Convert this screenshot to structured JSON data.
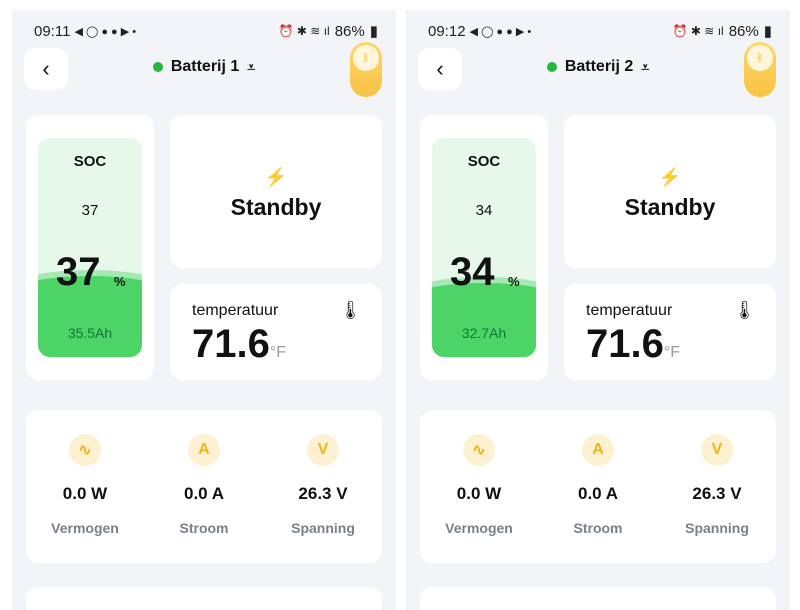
{
  "panels": [
    {
      "status": {
        "time": "09:11",
        "battery": "86%"
      },
      "title": "Batterij 1",
      "soc": {
        "label": "SOC",
        "small": "37",
        "big": "37",
        "unit": "%",
        "ah": "35.5Ah",
        "fraction": 0.37
      },
      "state": "Standby",
      "temperature": {
        "label": "temperatuur",
        "value": "71.6",
        "unit": "°F"
      },
      "stats": [
        {
          "value": "0.0 W",
          "label": "Vermogen",
          "icon": "pulse-icon",
          "glyph": "~"
        },
        {
          "value": "0.0 A",
          "label": "Stroom",
          "icon": "ampere-icon",
          "glyph": "A"
        },
        {
          "value": "26.3 V",
          "label": "Spanning",
          "icon": "volt-icon",
          "glyph": "V"
        }
      ]
    },
    {
      "status": {
        "time": "09:12",
        "battery": "86%"
      },
      "title": "Batterij 2",
      "soc": {
        "label": "SOC",
        "small": "34",
        "big": "34",
        "unit": "%",
        "ah": "32.7Ah",
        "fraction": 0.34
      },
      "state": "Standby",
      "temperature": {
        "label": "temperatuur",
        "value": "71.6",
        "unit": "°F"
      },
      "stats": [
        {
          "value": "0.0 W",
          "label": "Vermogen",
          "icon": "pulse-icon",
          "glyph": "~"
        },
        {
          "value": "0.0 A",
          "label": "Stroom",
          "icon": "ampere-icon",
          "glyph": "A"
        },
        {
          "value": "26.3 V",
          "label": "Spanning",
          "icon": "volt-icon",
          "glyph": "V"
        }
      ]
    }
  ],
  "colors": {
    "accent": "#f0b418",
    "green": "#4cd467",
    "online": "#22b83a"
  }
}
